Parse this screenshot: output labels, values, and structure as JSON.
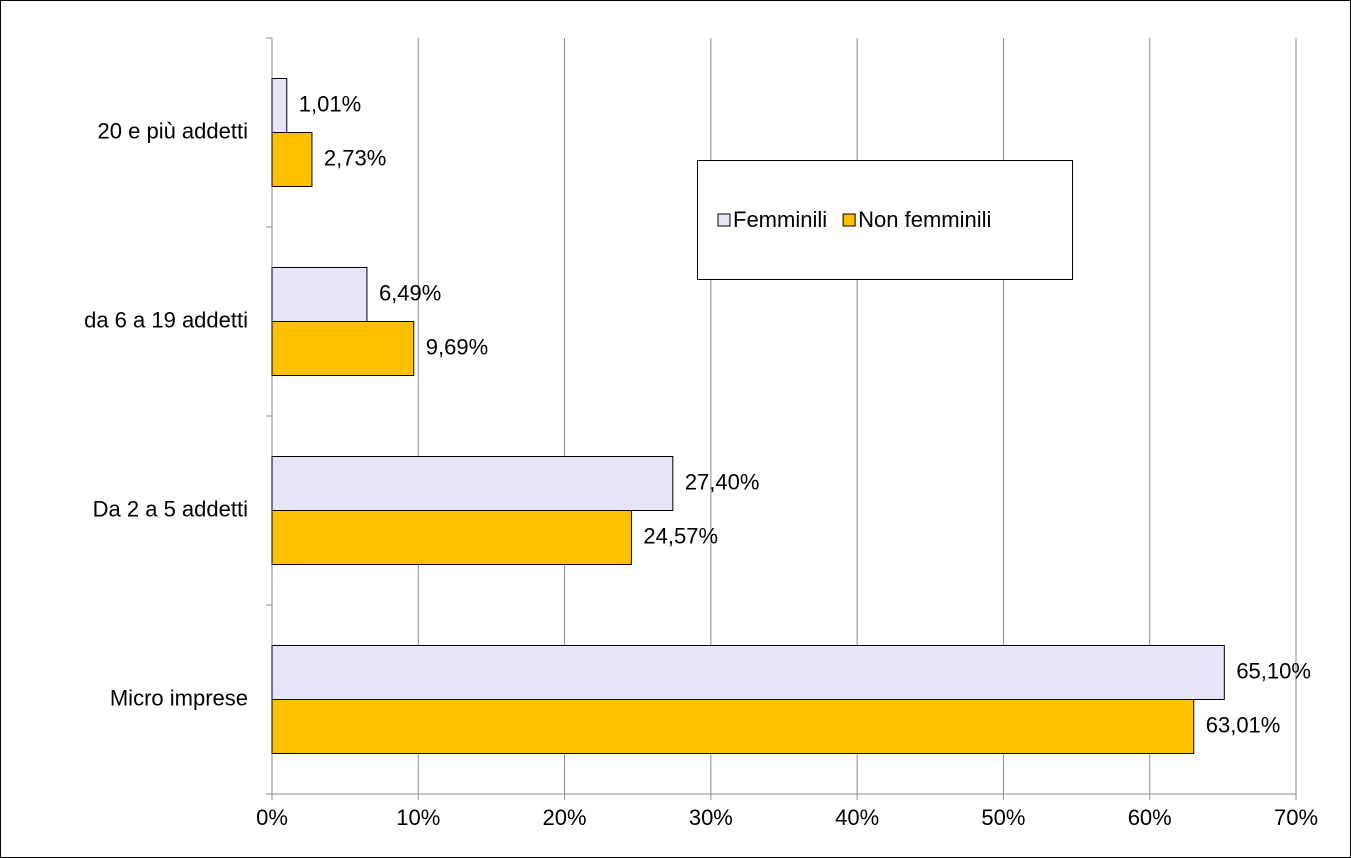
{
  "chart_data": {
    "type": "hbar",
    "categories": [
      "20 e più addetti",
      "da 6 a 19 addetti",
      "Da 2 a 5 addetti",
      "Micro imprese"
    ],
    "series": [
      {
        "name": "Femminili",
        "color": "#e8e4f8",
        "values": [
          1.01,
          6.49,
          27.4,
          65.1
        ],
        "value_labels": [
          "1,01%",
          "6,49%",
          "27,40%",
          "65,10%"
        ]
      },
      {
        "name": "Non femminili",
        "color": "#ffc000",
        "values": [
          2.73,
          9.69,
          24.57,
          63.01
        ],
        "value_labels": [
          "2,73%",
          "9,69%",
          "24,57%",
          "63,01%"
        ]
      }
    ],
    "xlim": [
      0,
      70
    ],
    "xticks": [
      {
        "value": 0,
        "label": "0%"
      },
      {
        "value": 10,
        "label": "10%"
      },
      {
        "value": 20,
        "label": "20%"
      },
      {
        "value": 30,
        "label": "30%"
      },
      {
        "value": 40,
        "label": "40%"
      },
      {
        "value": 50,
        "label": "50%"
      },
      {
        "value": 60,
        "label": "60%"
      },
      {
        "value": 70,
        "label": "70%"
      }
    ],
    "grid": true
  }
}
